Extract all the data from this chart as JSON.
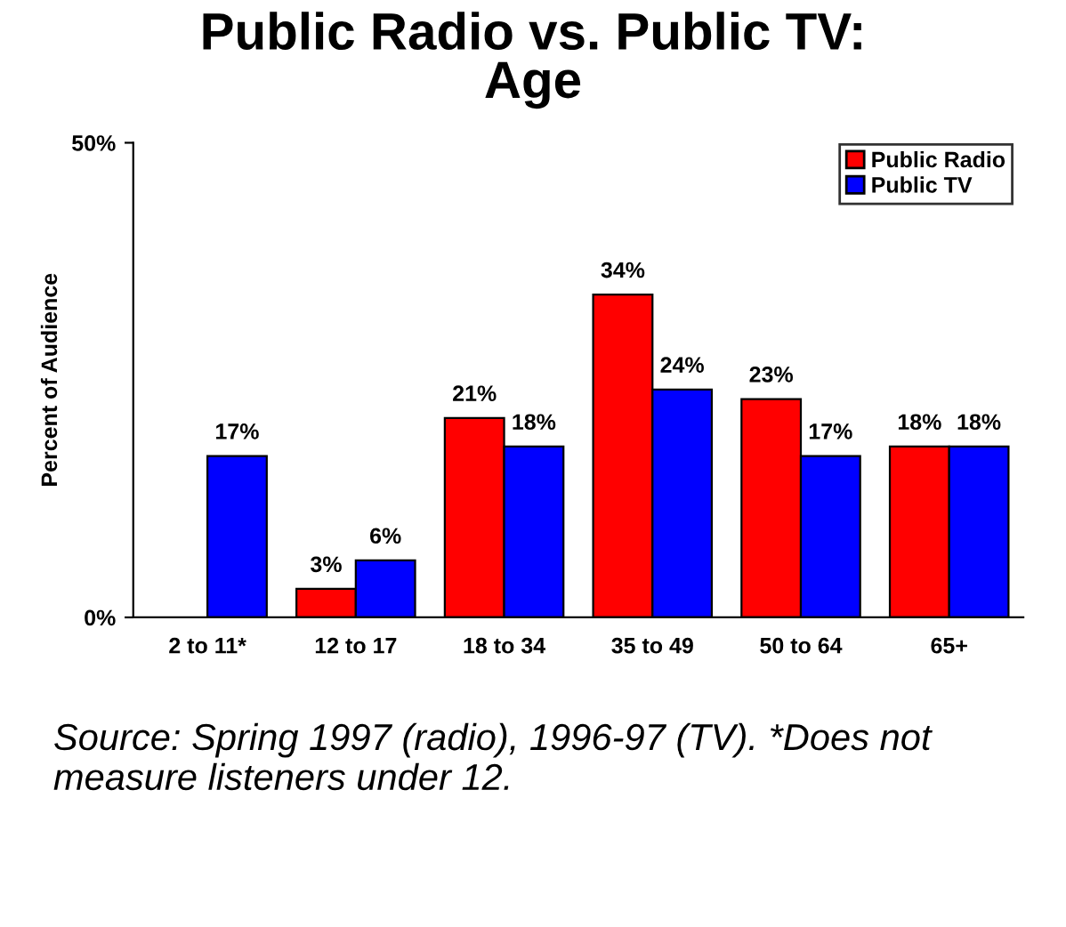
{
  "chart_data": {
    "type": "bar",
    "title": "Public Radio vs. Public TV: Age",
    "ylabel": "Percent of Audience",
    "categories": [
      "2 to 11*",
      "12 to 17",
      "18 to 34",
      "35 to 49",
      "50 to 64",
      "65+"
    ],
    "series": [
      {
        "name": "Public Radio",
        "color": "#ff0000",
        "values": [
          null,
          3,
          21,
          34,
          23,
          18
        ],
        "value_labels": [
          null,
          "3%",
          "21%",
          "34%",
          "23%",
          "18%"
        ]
      },
      {
        "name": "Public TV",
        "color": "#0000ff",
        "values": [
          17,
          6,
          18,
          24,
          17,
          18
        ],
        "value_labels": [
          "17%",
          "6%",
          "18%",
          "24%",
          "17%",
          "18%"
        ]
      }
    ],
    "ylim": [
      0,
      50
    ],
    "yticks": [
      {
        "value": 0,
        "label": "0%"
      },
      {
        "value": 50,
        "label": "50%"
      }
    ],
    "legend": "top right",
    "grid": false,
    "annotations": [
      "Source: Spring 1997 (radio), 1996-97 (TV). *Does not measure listeners under 12."
    ]
  }
}
